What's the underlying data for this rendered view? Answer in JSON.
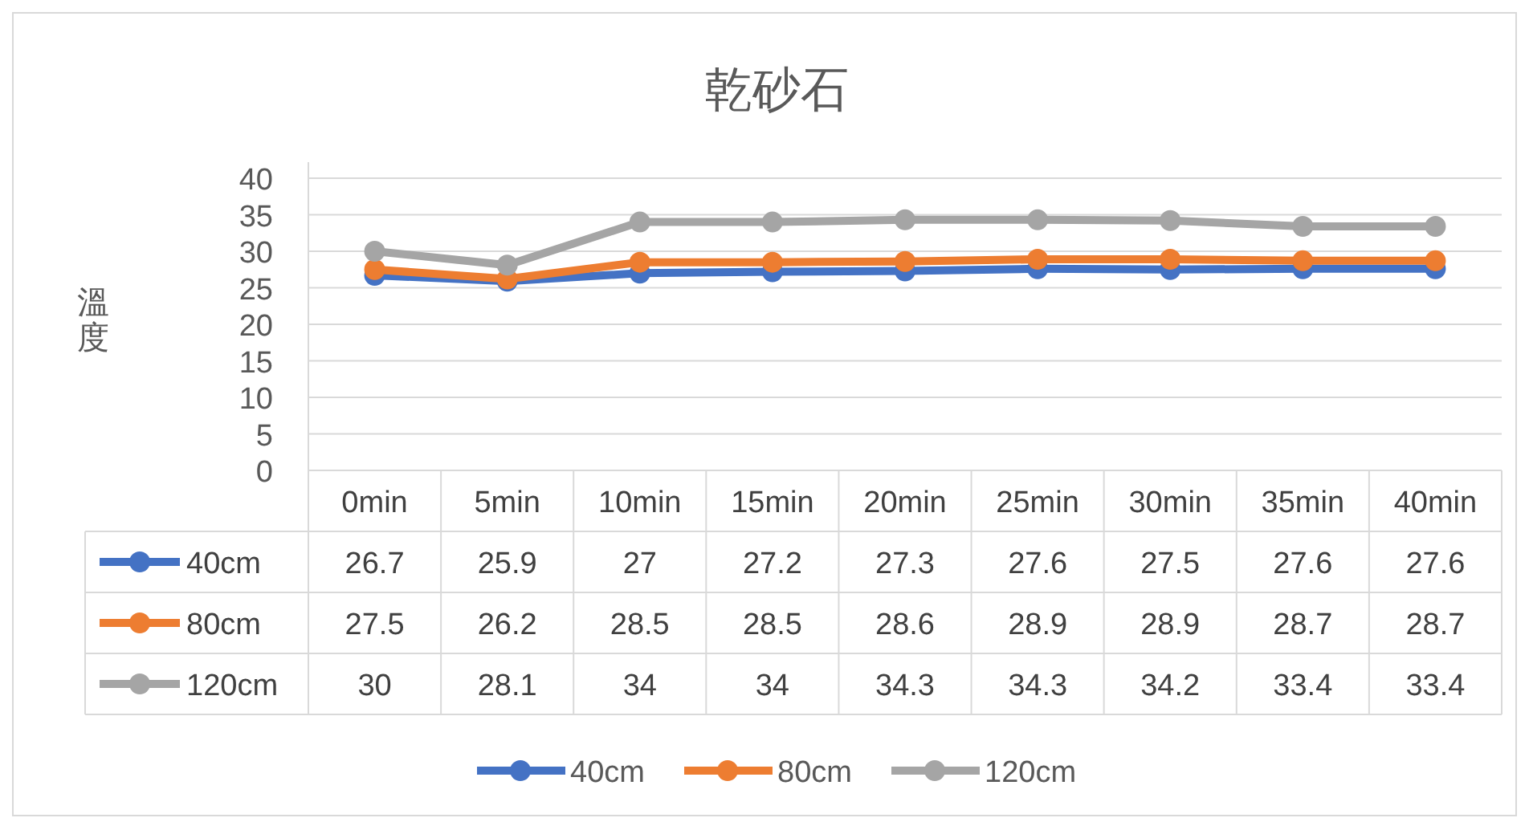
{
  "chart_data": {
    "type": "line",
    "title": "乾砂石",
    "ylabel": "溫度",
    "categories": [
      "0min",
      "5min",
      "10min",
      "15min",
      "20min",
      "25min",
      "30min",
      "35min",
      "40min"
    ],
    "series": [
      {
        "name": "40cm",
        "color": "#4472c4",
        "values": [
          26.7,
          25.9,
          27,
          27.2,
          27.3,
          27.6,
          27.5,
          27.6,
          27.6
        ]
      },
      {
        "name": "80cm",
        "color": "#ed7d31",
        "values": [
          27.5,
          26.2,
          28.5,
          28.5,
          28.6,
          28.9,
          28.9,
          28.7,
          28.7
        ]
      },
      {
        "name": "120cm",
        "color": "#a5a5a5",
        "values": [
          30,
          28.1,
          34,
          34,
          34.3,
          34.3,
          34.2,
          33.4,
          33.4
        ]
      }
    ],
    "ylim": [
      0,
      40
    ],
    "yticks": [
      0,
      5,
      10,
      15,
      20,
      25,
      30,
      35,
      40
    ],
    "grid": "y",
    "marker": "circle",
    "line_style": "solid",
    "legend": "bottom",
    "data_labels": true
  }
}
